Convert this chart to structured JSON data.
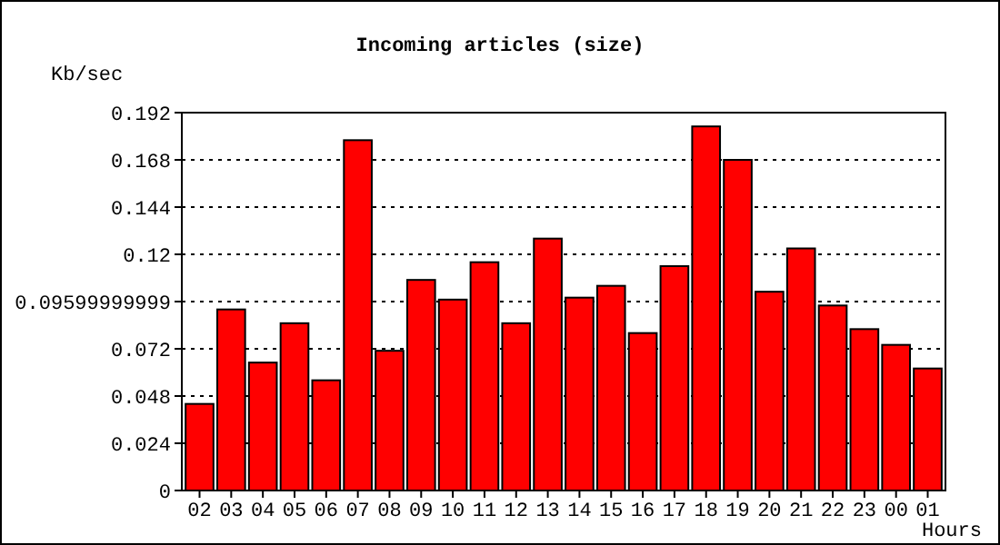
{
  "chart_data": {
    "type": "bar",
    "title": "Incoming articles (size)",
    "ylabel": "Kb/sec",
    "xlabel": "Hours",
    "categories": [
      "02",
      "03",
      "04",
      "05",
      "06",
      "07",
      "08",
      "09",
      "10",
      "11",
      "12",
      "13",
      "14",
      "15",
      "16",
      "17",
      "18",
      "19",
      "20",
      "21",
      "22",
      "23",
      "00",
      "01"
    ],
    "values": [
      0.044,
      0.092,
      0.065,
      0.085,
      0.056,
      0.178,
      0.071,
      0.107,
      0.097,
      0.116,
      0.085,
      0.128,
      0.098,
      0.104,
      0.08,
      0.114,
      0.185,
      0.168,
      0.101,
      0.123,
      0.094,
      0.082,
      0.074,
      0.062
    ],
    "color": "#ff0000",
    "ylim": [
      0,
      0.192
    ],
    "yticks": [
      0,
      0.024,
      0.048,
      0.072,
      0.09599999999,
      0.12,
      0.144,
      0.168,
      0.192
    ],
    "grid": "y"
  }
}
